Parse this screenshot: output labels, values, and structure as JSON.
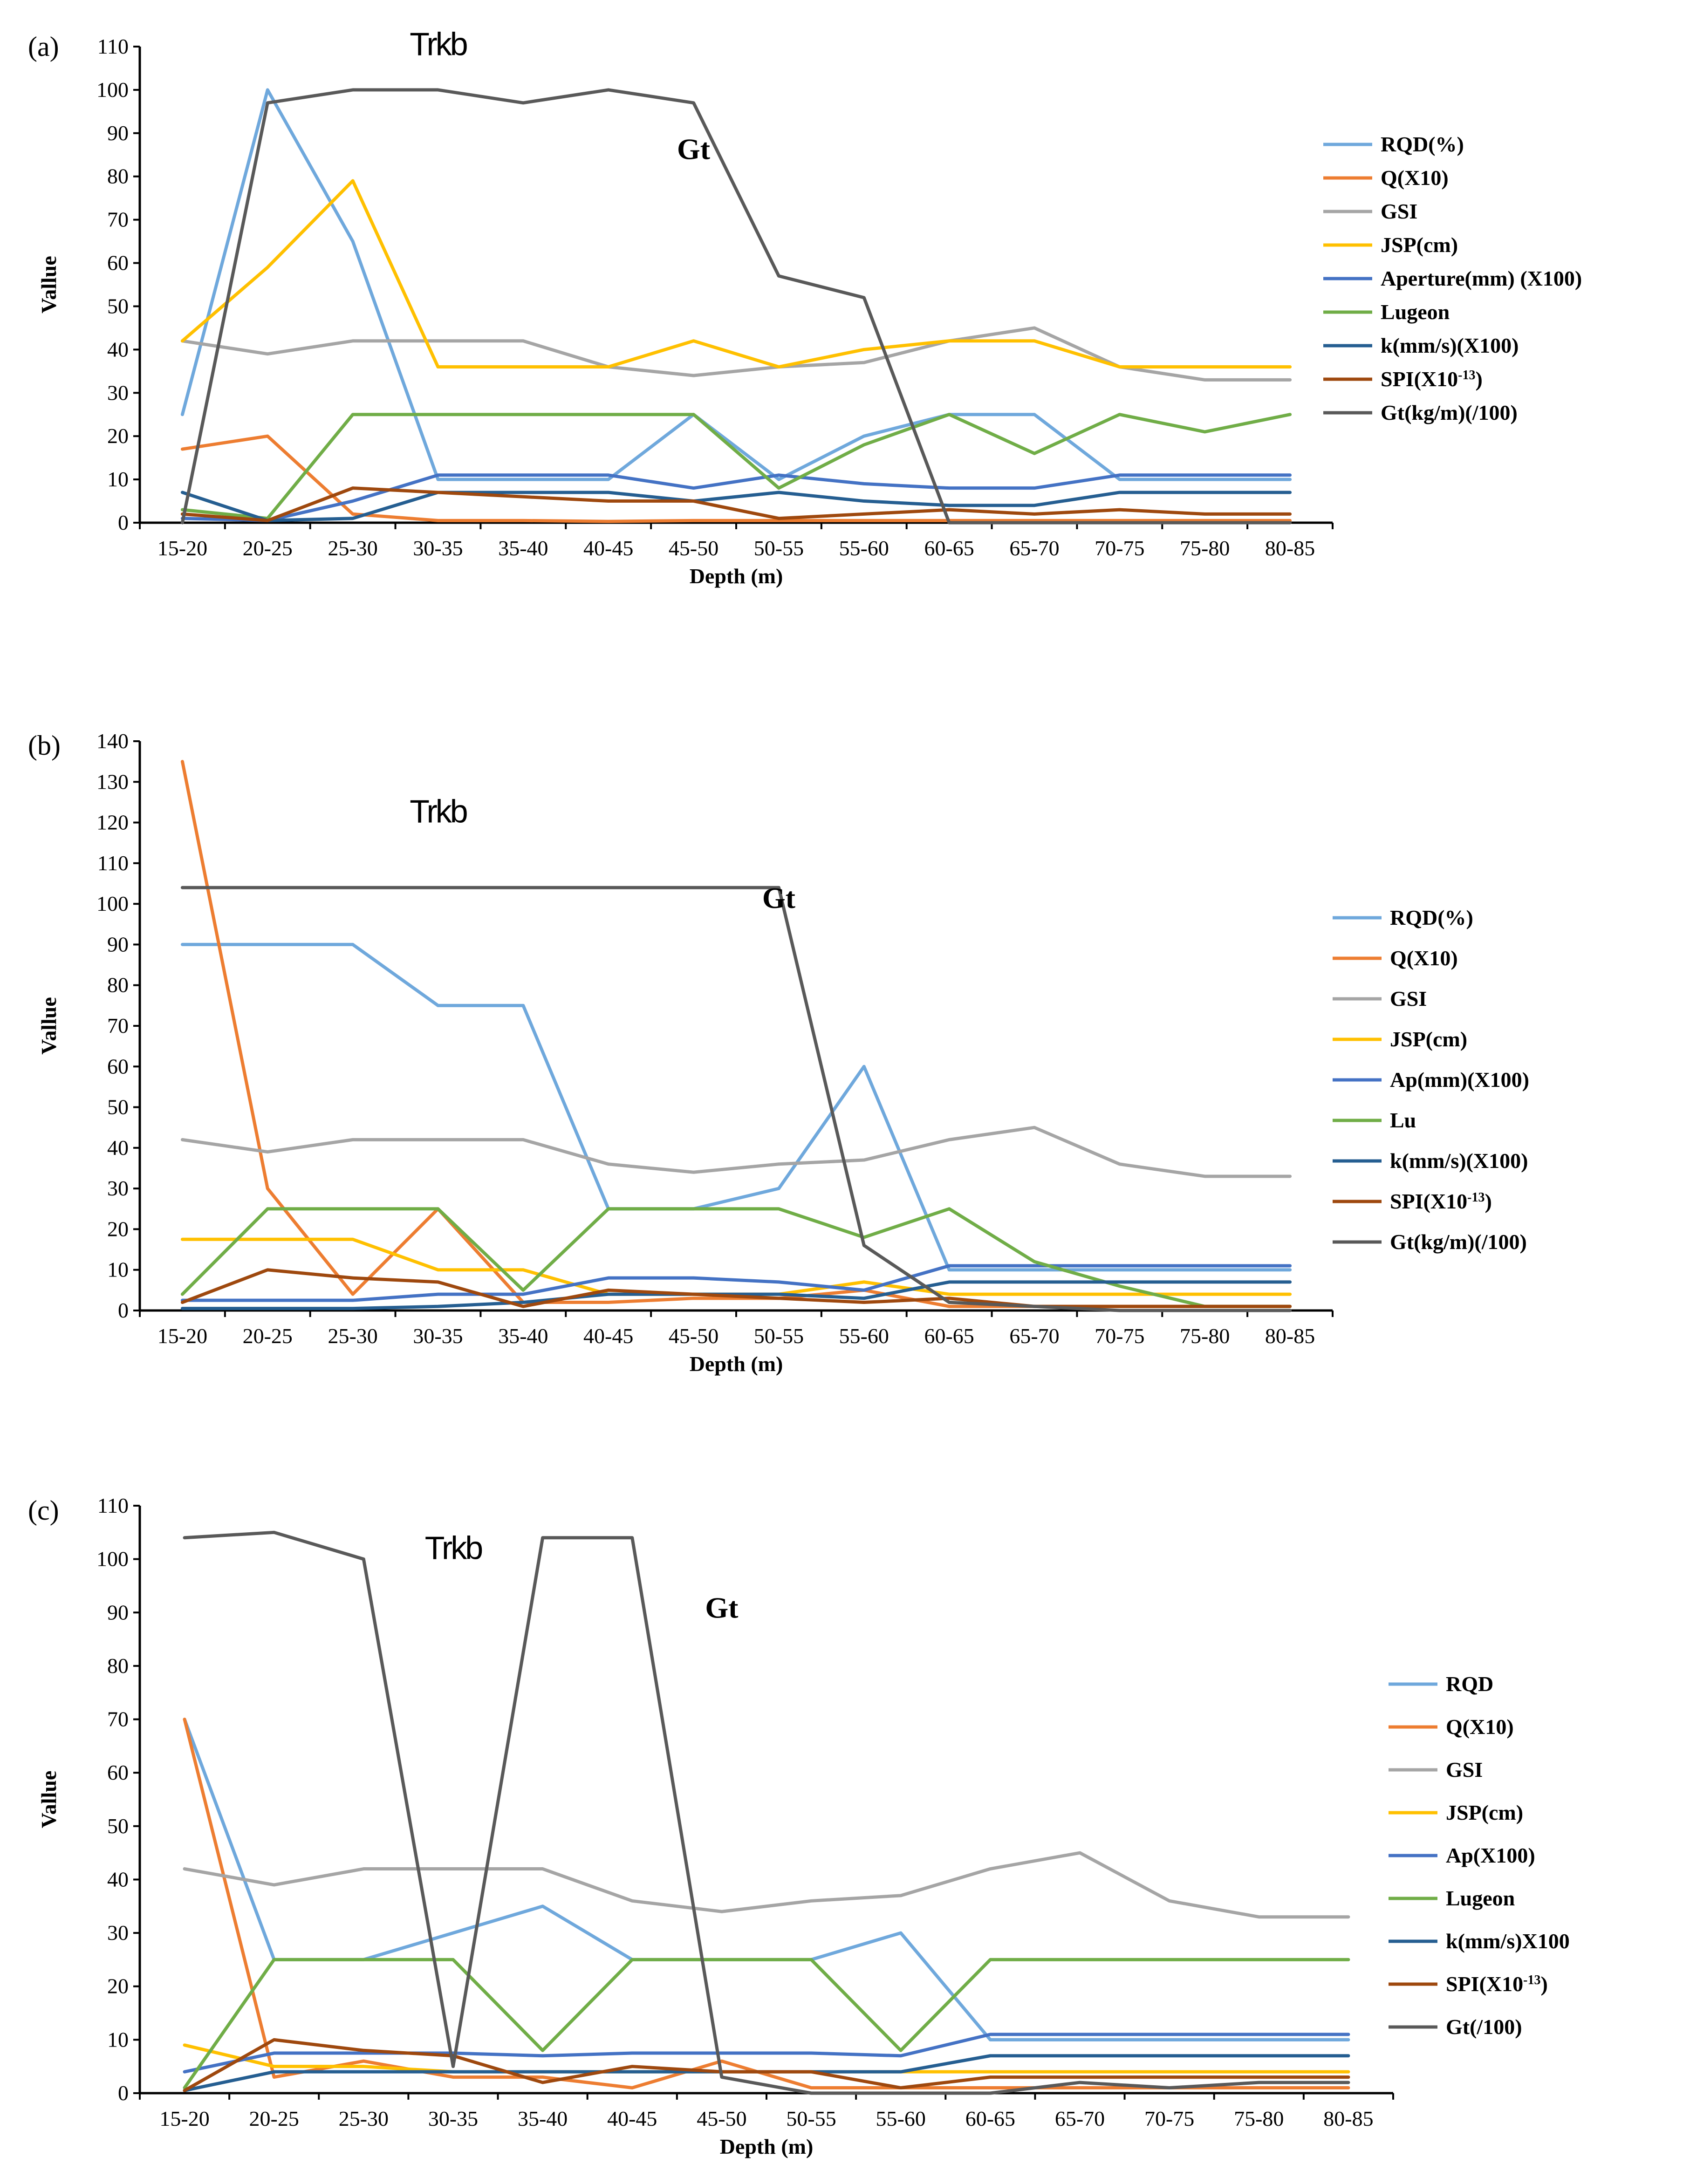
{
  "chart_data": [
    {
      "type": "line",
      "panel_label": "(a)",
      "xlabel": "Depth (m)",
      "ylabel": "Vallue",
      "ylim": [
        0,
        110
      ],
      "yticks": [
        0,
        10,
        20,
        30,
        40,
        50,
        60,
        70,
        80,
        90,
        100,
        110
      ],
      "categories": [
        "15-20",
        "20-25",
        "25-30",
        "30-35",
        "35-40",
        "40-45",
        "45-50",
        "50-55",
        "55-60",
        "60-65",
        "65-70",
        "70-75",
        "75-80",
        "80-85"
      ],
      "annotations": [
        {
          "text": "Trkb",
          "x": "30-35",
          "y": 108
        },
        {
          "text": "Gt",
          "x": "45-50",
          "y": 84
        }
      ],
      "legend_position": "right",
      "series": [
        {
          "name": "RQD(%)",
          "color": "#6fa8dc",
          "values": [
            25,
            100,
            65,
            10,
            10,
            10,
            25,
            10,
            20,
            25,
            25,
            10,
            10,
            10
          ]
        },
        {
          "name": "Q(X10)",
          "color": "#ed7d31",
          "values": [
            17,
            20,
            2,
            0.5,
            0.5,
            0.3,
            0.5,
            0.5,
            0.5,
            0.5,
            0.5,
            0.5,
            0.5,
            0.5
          ]
        },
        {
          "name": "GSI",
          "color": "#a5a5a5",
          "values": [
            42,
            39,
            42,
            42,
            42,
            36,
            34,
            36,
            37,
            42,
            45,
            36,
            33,
            33
          ]
        },
        {
          "name": "JSP(cm)",
          "color": "#ffc000",
          "values": [
            42,
            59,
            79,
            36,
            36,
            36,
            42,
            36,
            40,
            42,
            42,
            36,
            36,
            36
          ]
        },
        {
          "name": "Aperture(mm) (X100)",
          "color": "#4472c4",
          "values": [
            1,
            0.5,
            5,
            11,
            11,
            11,
            8,
            11,
            9,
            8,
            8,
            11,
            11,
            11
          ]
        },
        {
          "name": "Lugeon",
          "color": "#70ad47",
          "values": [
            3,
            1,
            25,
            25,
            25,
            25,
            25,
            8,
            18,
            25,
            16,
            25,
            21,
            25
          ]
        },
        {
          "name": "k(mm/s)(X100)",
          "color": "#255e91",
          "values": [
            7,
            0.5,
            1,
            7,
            7,
            7,
            5,
            7,
            5,
            4,
            4,
            7,
            7,
            7
          ]
        },
        {
          "name": "SPI(X10^-13)",
          "color": "#9e480e",
          "values": [
            2,
            0.5,
            8,
            7,
            6,
            5,
            5,
            1,
            2,
            3,
            2,
            3,
            2,
            2
          ]
        },
        {
          "name": "Gt(kg/m)(/100)",
          "color": "#595959",
          "values": [
            0,
            97,
            100,
            100,
            97,
            100,
            97,
            57,
            52,
            0,
            0,
            0,
            0,
            0
          ]
        }
      ]
    },
    {
      "type": "line",
      "panel_label": "(b)",
      "xlabel": "Depth (m)",
      "ylabel": "Vallue",
      "ylim": [
        0,
        140
      ],
      "yticks": [
        0,
        10,
        20,
        30,
        40,
        50,
        60,
        70,
        80,
        90,
        100,
        110,
        120,
        130,
        140
      ],
      "categories": [
        "15-20",
        "20-25",
        "25-30",
        "30-35",
        "35-40",
        "40-45",
        "45-50",
        "50-55",
        "55-60",
        "60-65",
        "65-70",
        "70-75",
        "75-80",
        "80-85"
      ],
      "annotations": [
        {
          "text": "Trkb",
          "x": "30-35",
          "y": 120
        },
        {
          "text": "Gt",
          "x": "50-55",
          "y": 99
        }
      ],
      "legend_position": "right",
      "series": [
        {
          "name": "RQD(%)",
          "color": "#6fa8dc",
          "values": [
            90,
            90,
            90,
            75,
            75,
            25,
            25,
            30,
            60,
            10,
            10,
            10,
            10,
            10
          ]
        },
        {
          "name": "Q(X10)",
          "color": "#ed7d31",
          "values": [
            135,
            30,
            4,
            25,
            2,
            2,
            3,
            3,
            5,
            1,
            1,
            1,
            1,
            1
          ]
        },
        {
          "name": "GSI",
          "color": "#a5a5a5",
          "values": [
            42,
            39,
            42,
            42,
            42,
            36,
            34,
            36,
            37,
            42,
            45,
            36,
            33,
            33
          ]
        },
        {
          "name": "JSP(cm)",
          "color": "#ffc000",
          "values": [
            17.5,
            17.5,
            17.5,
            10,
            10,
            4,
            4,
            4,
            7,
            4,
            4,
            4,
            4,
            4
          ]
        },
        {
          "name": "Ap(mm)(X100)",
          "color": "#4472c4",
          "values": [
            2.5,
            2.5,
            2.5,
            4,
            4,
            8,
            8,
            7,
            5,
            11,
            11,
            11,
            11,
            11
          ]
        },
        {
          "name": "Lu",
          "color": "#70ad47",
          "values": [
            4,
            25,
            25,
            25,
            5,
            25,
            25,
            25,
            18,
            25,
            12,
            6,
            1,
            1
          ]
        },
        {
          "name": "k(mm/s)(X100)",
          "color": "#255e91",
          "values": [
            0.5,
            0.5,
            0.5,
            1,
            2,
            4,
            4,
            4,
            3,
            7,
            7,
            7,
            7,
            7
          ]
        },
        {
          "name": "SPI(X10^-13)",
          "color": "#9e480e",
          "values": [
            2,
            10,
            8,
            7,
            1,
            5,
            4,
            3,
            2,
            3,
            1,
            1,
            1,
            1
          ]
        },
        {
          "name": "Gt(kg/m)(/100)",
          "color": "#595959",
          "values": [
            104,
            104,
            104,
            104,
            104,
            104,
            104,
            104,
            16,
            2,
            1,
            0,
            0,
            0
          ]
        }
      ]
    },
    {
      "type": "line",
      "panel_label": "(c)",
      "xlabel": "Depth (m)",
      "ylabel": "Vallue",
      "ylim": [
        0,
        110
      ],
      "yticks": [
        0,
        10,
        20,
        30,
        40,
        50,
        60,
        70,
        80,
        90,
        100,
        110
      ],
      "categories": [
        "15-20",
        "20-25",
        "25-30",
        "30-35",
        "35-40",
        "40-45",
        "45-50",
        "50-55",
        "55-60",
        "60-65",
        "65-70",
        "70-75",
        "75-80",
        "80-85"
      ],
      "annotations": [
        {
          "text": "Trkb",
          "x": "30-35",
          "y": 100
        },
        {
          "text": "Gt",
          "x": "45-50",
          "y": 89
        }
      ],
      "legend_position": "right",
      "series": [
        {
          "name": "RQD",
          "color": "#6fa8dc",
          "values": [
            70,
            25,
            25,
            30,
            35,
            25,
            25,
            25,
            30,
            10,
            10,
            10,
            10,
            10
          ]
        },
        {
          "name": "Q(X10)",
          "color": "#ed7d31",
          "values": [
            70,
            3,
            6,
            3,
            3,
            1,
            6,
            1,
            1,
            1,
            1,
            1,
            1,
            1
          ]
        },
        {
          "name": "GSI",
          "color": "#a5a5a5",
          "values": [
            42,
            39,
            42,
            42,
            42,
            36,
            34,
            36,
            37,
            42,
            45,
            36,
            33,
            33
          ]
        },
        {
          "name": "JSP(cm)",
          "color": "#ffc000",
          "values": [
            9,
            5,
            5,
            4,
            4,
            4,
            4,
            4,
            4,
            4,
            4,
            4,
            4,
            4
          ]
        },
        {
          "name": "Ap(X100)",
          "color": "#4472c4",
          "values": [
            4,
            7.5,
            7.5,
            7.5,
            7,
            7.5,
            7.5,
            7.5,
            7,
            11,
            11,
            11,
            11,
            11
          ]
        },
        {
          "name": "Lugeon",
          "color": "#70ad47",
          "values": [
            1,
            25,
            25,
            25,
            8,
            25,
            25,
            25,
            8,
            25,
            25,
            25,
            25,
            25
          ]
        },
        {
          "name": "k(mm/s)X100",
          "color": "#255e91",
          "values": [
            0.5,
            4,
            4,
            4,
            4,
            4,
            4,
            4,
            4,
            7,
            7,
            7,
            7,
            7
          ]
        },
        {
          "name": "SPI(X10^-13)",
          "color": "#9e480e",
          "values": [
            0.5,
            10,
            8,
            7,
            2,
            5,
            4,
            4,
            1,
            3,
            3,
            3,
            3,
            3
          ]
        },
        {
          "name": "Gt(/100)",
          "color": "#595959",
          "values": [
            104,
            105,
            100,
            5,
            104,
            104,
            3,
            0,
            0,
            0,
            2,
            1,
            2,
            2
          ]
        }
      ]
    }
  ]
}
